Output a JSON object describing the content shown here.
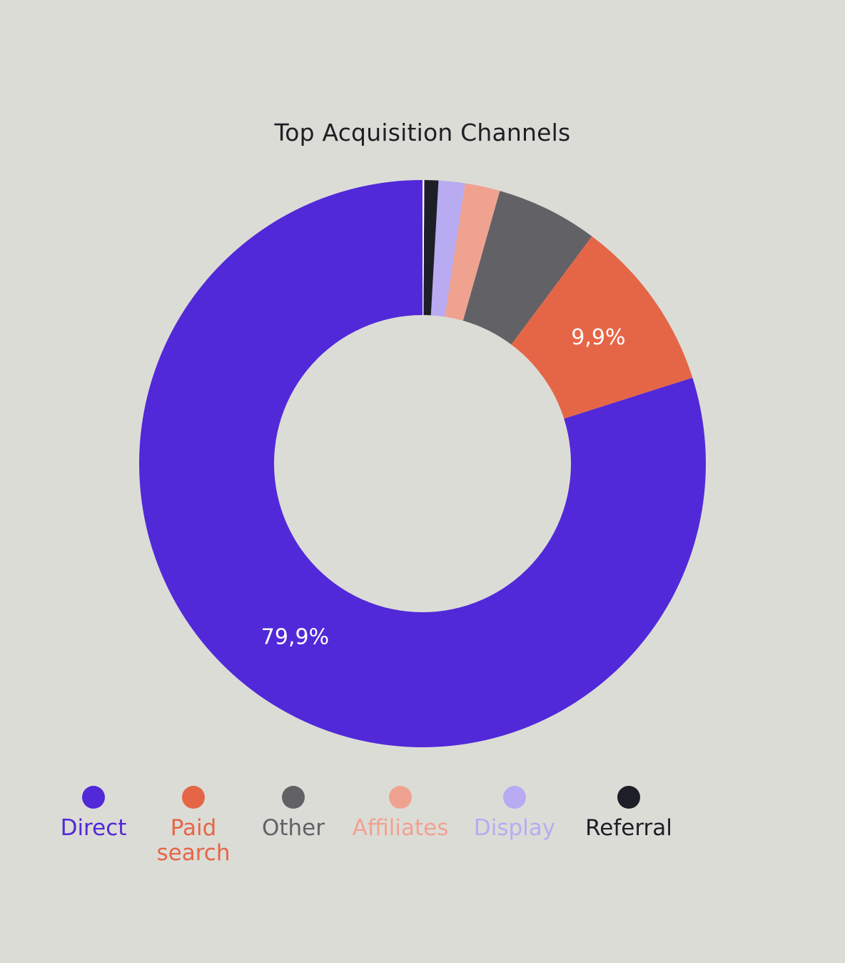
{
  "chart_data": {
    "type": "pie",
    "title": "Top Acquisition Channels",
    "categories": [
      "Direct",
      "Paid search",
      "Other",
      "Affiliates",
      "Display",
      "Referral",
      ""
    ],
    "values": [
      79.9,
      9.9,
      5.8,
      2.0,
      1.5,
      0.8,
      0.1
    ],
    "data_labels": [
      "79,9%",
      "9,9%",
      "",
      "",
      "",
      "",
      ""
    ],
    "colors": [
      "#5129d8",
      "#e56647",
      "#626166",
      "#f0a291",
      "#b8abf2",
      "#1e1e26",
      "#f5f5f7"
    ],
    "legend_position": "bottom",
    "legend_labels": [
      {
        "text": "Direct",
        "color": "#5129d8"
      },
      {
        "text": "Paid search",
        "color": "#e56647"
      },
      {
        "text": "Other",
        "color": "#626166"
      },
      {
        "text": "Affiliates",
        "color": "#f0a291"
      },
      {
        "text": "Display",
        "color": "#b8abf2"
      },
      {
        "text": "Referral",
        "color": "#1e1e26"
      }
    ]
  }
}
